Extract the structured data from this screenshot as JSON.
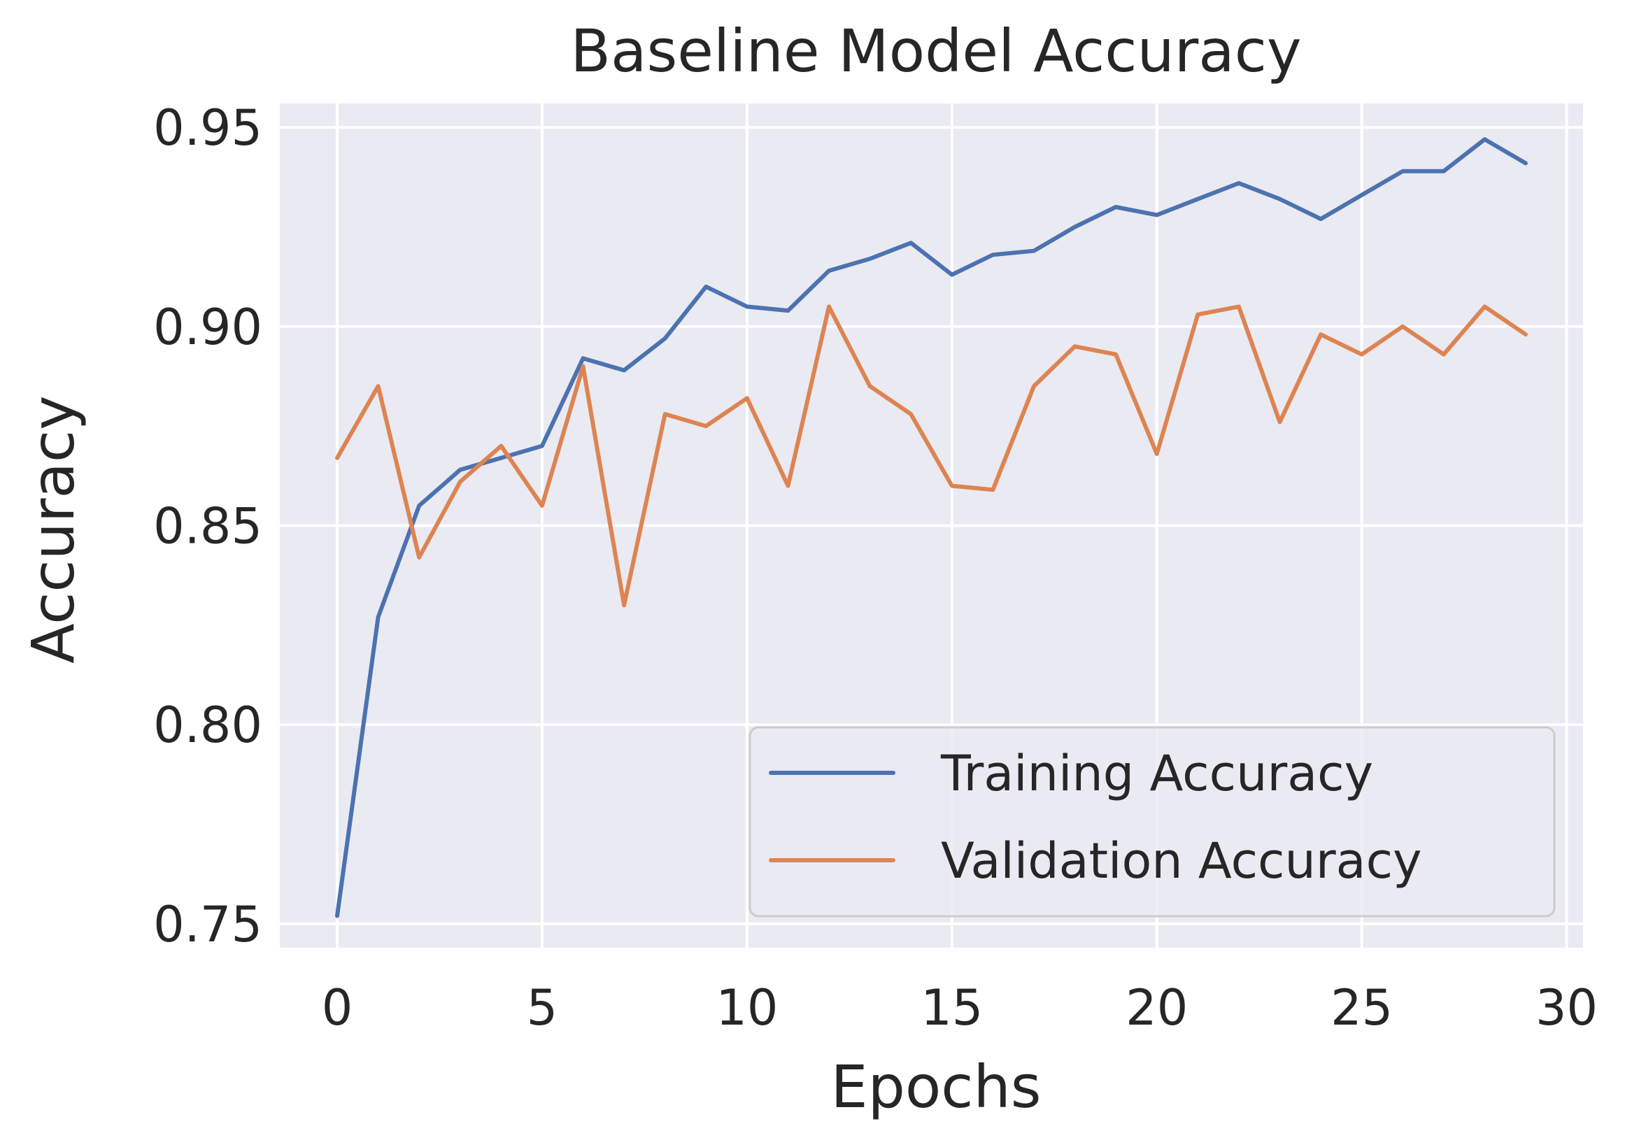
{
  "chart_data": {
    "type": "line",
    "title": "Baseline Model Accuracy",
    "xlabel": "Epochs",
    "ylabel": "Accuracy",
    "xlim": [
      -1.4,
      30.4
    ],
    "ylim": [
      0.744,
      0.956
    ],
    "xticks": [
      0,
      5,
      10,
      15,
      20,
      25,
      30
    ],
    "yticks": [
      0.75,
      0.8,
      0.85,
      0.9,
      0.95
    ],
    "ytick_labels": [
      "0.75",
      "0.80",
      "0.85",
      "0.90",
      "0.95"
    ],
    "grid": true,
    "legend_position": "lower-right",
    "background_color": "#eaeaf2",
    "x": [
      0,
      1,
      2,
      3,
      4,
      5,
      6,
      7,
      8,
      9,
      10,
      11,
      12,
      13,
      14,
      15,
      16,
      17,
      18,
      19,
      20,
      21,
      22,
      23,
      24,
      25,
      26,
      27,
      28,
      29
    ],
    "series": [
      {
        "name": "Training Accuracy",
        "color": "#4c72b0",
        "values": [
          0.752,
          0.827,
          0.855,
          0.864,
          0.867,
          0.87,
          0.892,
          0.889,
          0.897,
          0.91,
          0.905,
          0.904,
          0.914,
          0.917,
          0.921,
          0.913,
          0.918,
          0.919,
          0.925,
          0.93,
          0.928,
          0.932,
          0.936,
          0.932,
          0.927,
          0.933,
          0.939,
          0.939,
          0.947,
          0.941
        ]
      },
      {
        "name": "Validation Accuracy",
        "color": "#dd8452",
        "values": [
          0.867,
          0.885,
          0.842,
          0.861,
          0.87,
          0.855,
          0.89,
          0.83,
          0.878,
          0.875,
          0.882,
          0.86,
          0.905,
          0.885,
          0.878,
          0.86,
          0.859,
          0.885,
          0.895,
          0.893,
          0.868,
          0.903,
          0.905,
          0.876,
          0.898,
          0.893,
          0.9,
          0.893,
          0.905,
          0.898
        ]
      }
    ]
  }
}
